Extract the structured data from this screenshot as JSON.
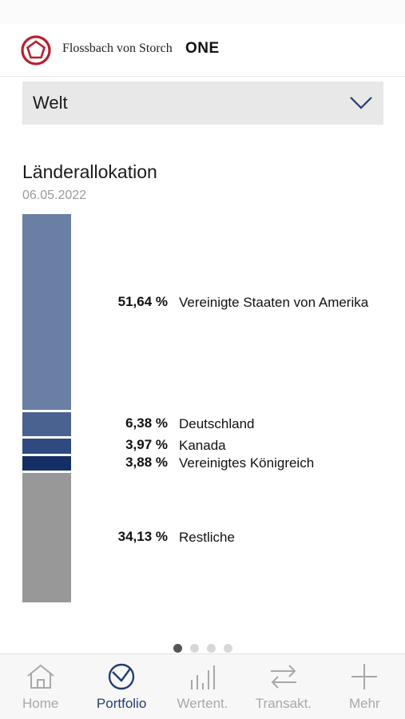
{
  "header": {
    "brand_name": "Flossbach von Storch",
    "brand_suffix": "ONE",
    "logo_icon": "pentagon-logo-icon",
    "accent": "#b5202e"
  },
  "selector": {
    "value": "Welt",
    "icon": "chevron-down-icon"
  },
  "section": {
    "title": "Länderallokation",
    "date": "06.05.2022"
  },
  "chart_data": {
    "type": "bar",
    "orientation": "stacked-vertical",
    "categories": [
      "Vereinigte Staaten von Amerika",
      "Deutschland",
      "Kanada",
      "Vereinigtes Königreich",
      "Restliche"
    ],
    "values": [
      51.64,
      6.38,
      3.97,
      3.88,
      34.13
    ],
    "labels": [
      "51,64 %",
      "6,38 %",
      "3,97 %",
      "3,88 %",
      "34,13 %"
    ],
    "colors": [
      "#697fa3",
      "#4a6290",
      "#2f4a80",
      "#142f66",
      "#989898"
    ],
    "title": "Länderallokation",
    "subtitle": "06.05.2022"
  },
  "pager": {
    "count": 4,
    "active": 0
  },
  "tabs": [
    {
      "label": "Home",
      "icon": "home-icon",
      "active": false
    },
    {
      "label": "Portfolio",
      "icon": "portfolio-icon",
      "active": true
    },
    {
      "label": "Wertent.",
      "icon": "bar-chart-icon",
      "active": false
    },
    {
      "label": "Transakt.",
      "icon": "transfer-arrows-icon",
      "active": false
    },
    {
      "label": "Mehr",
      "icon": "plus-icon",
      "active": false
    }
  ],
  "colors": {
    "tab_active": "#233d73",
    "tab_inactive": "#a8a8a8"
  }
}
